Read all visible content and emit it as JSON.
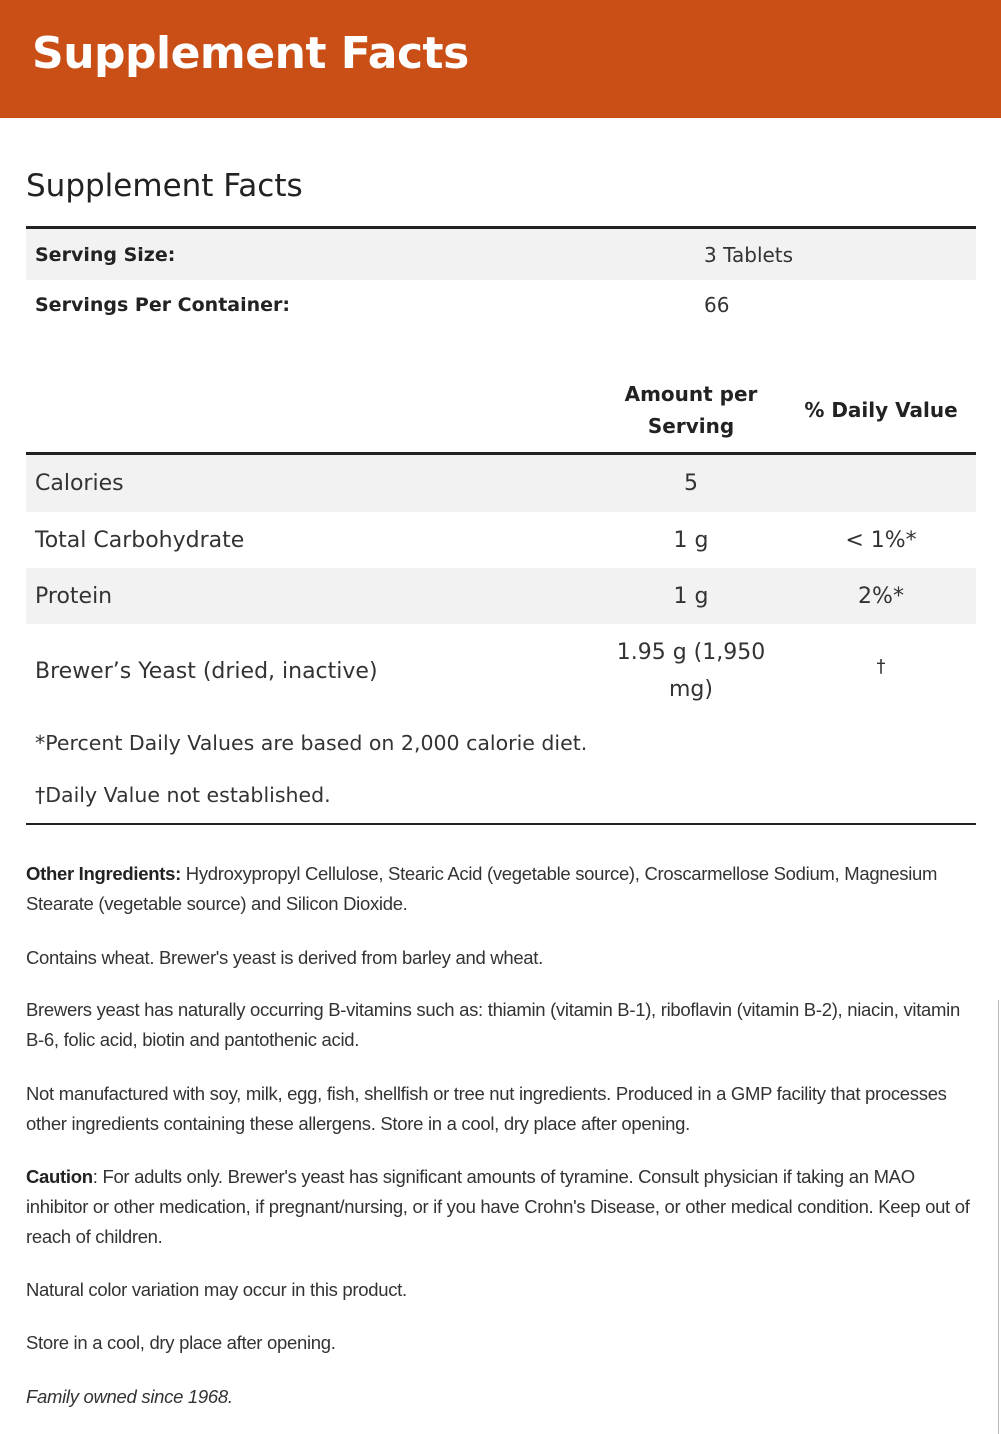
{
  "banner": {
    "title": "Supplement Facts",
    "color": "#c94f17"
  },
  "facts": {
    "title": "Supplement Facts",
    "serving_size": {
      "label": "Serving Size:",
      "value": "3 Tablets"
    },
    "servings_per_container": {
      "label": "Servings Per Container:",
      "value": "66"
    },
    "columns": {
      "amount": "Amount per Serving",
      "daily_value": "% Daily Value"
    },
    "rows": [
      {
        "name": "Calories",
        "amount": "5",
        "dv": ""
      },
      {
        "name": "Total Carbohydrate",
        "amount": "1 g",
        "dv": "< 1%*"
      },
      {
        "name": "Protein",
        "amount": "1 g",
        "dv": "2%*"
      },
      {
        "name": "Brewer’s Yeast (dried, inactive)",
        "amount": "1.95 g (1,950 mg)",
        "dv": "†"
      }
    ],
    "footnotes": [
      "*Percent Daily Values are based on 2,000 calorie diet.",
      "†Daily Value not established."
    ]
  },
  "info": {
    "other_label": "Other Ingredients:",
    "other_text": " Hydroxypropyl Cellulose, Stearic Acid (vegetable source), Croscarmellose Sodium, Magnesium Stearate (vegetable source) and Silicon Dioxide.",
    "contains": "Contains wheat. Brewer's yeast is derived from barley and wheat.",
    "vitamins": "Brewers yeast has naturally occurring B-vitamins such as: thiamin (vitamin B-1), riboflavin (vitamin B-2), niacin, vitamin B-6, folic acid, biotin and pantothenic acid.",
    "allergens": "Not manufactured with soy, milk, egg, fish, shellfish or tree nut ingredients. Produced in a GMP facility that processes other ingredients containing these allergens. Store in a cool, dry place after opening.",
    "caution_label": "Caution",
    "caution_text": ": For adults only. Brewer's yeast has significant amounts of tyramine. Consult physician if taking an MAO inhibitor or other medication, if pregnant/nursing, or if you have Crohn's Disease, or other medical condition. Keep out of reach of children.",
    "color_note": "Natural color variation may occur in this product.",
    "storage": "Store in a cool, dry place after opening.",
    "family": "Family owned since 1968."
  }
}
